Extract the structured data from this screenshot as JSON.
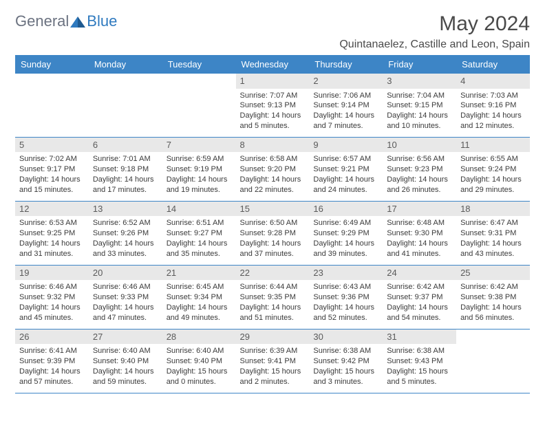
{
  "logo": {
    "general": "General",
    "blue": "Blue"
  },
  "title": "May 2024",
  "location": "Quintanaelez, Castille and Leon, Spain",
  "colors": {
    "header_bg": "#3d85c6",
    "header_text": "#ffffff",
    "border": "#3d85c6",
    "daynum_bg": "#e8e8e8",
    "text": "#3a3a3a",
    "logo_gray": "#6b7280",
    "logo_blue": "#2f7abf"
  },
  "weekdays": [
    "Sunday",
    "Monday",
    "Tuesday",
    "Wednesday",
    "Thursday",
    "Friday",
    "Saturday"
  ],
  "weeks": [
    [
      {
        "n": "",
        "empty": true
      },
      {
        "n": "",
        "empty": true
      },
      {
        "n": "",
        "empty": true
      },
      {
        "n": "1",
        "sr": "7:07 AM",
        "ss": "9:13 PM",
        "d1": "14 hours",
        "d2": "and 5 minutes."
      },
      {
        "n": "2",
        "sr": "7:06 AM",
        "ss": "9:14 PM",
        "d1": "14 hours",
        "d2": "and 7 minutes."
      },
      {
        "n": "3",
        "sr": "7:04 AM",
        "ss": "9:15 PM",
        "d1": "14 hours",
        "d2": "and 10 minutes."
      },
      {
        "n": "4",
        "sr": "7:03 AM",
        "ss": "9:16 PM",
        "d1": "14 hours",
        "d2": "and 12 minutes."
      }
    ],
    [
      {
        "n": "5",
        "sr": "7:02 AM",
        "ss": "9:17 PM",
        "d1": "14 hours",
        "d2": "and 15 minutes."
      },
      {
        "n": "6",
        "sr": "7:01 AM",
        "ss": "9:18 PM",
        "d1": "14 hours",
        "d2": "and 17 minutes."
      },
      {
        "n": "7",
        "sr": "6:59 AM",
        "ss": "9:19 PM",
        "d1": "14 hours",
        "d2": "and 19 minutes."
      },
      {
        "n": "8",
        "sr": "6:58 AM",
        "ss": "9:20 PM",
        "d1": "14 hours",
        "d2": "and 22 minutes."
      },
      {
        "n": "9",
        "sr": "6:57 AM",
        "ss": "9:21 PM",
        "d1": "14 hours",
        "d2": "and 24 minutes."
      },
      {
        "n": "10",
        "sr": "6:56 AM",
        "ss": "9:23 PM",
        "d1": "14 hours",
        "d2": "and 26 minutes."
      },
      {
        "n": "11",
        "sr": "6:55 AM",
        "ss": "9:24 PM",
        "d1": "14 hours",
        "d2": "and 29 minutes."
      }
    ],
    [
      {
        "n": "12",
        "sr": "6:53 AM",
        "ss": "9:25 PM",
        "d1": "14 hours",
        "d2": "and 31 minutes."
      },
      {
        "n": "13",
        "sr": "6:52 AM",
        "ss": "9:26 PM",
        "d1": "14 hours",
        "d2": "and 33 minutes."
      },
      {
        "n": "14",
        "sr": "6:51 AM",
        "ss": "9:27 PM",
        "d1": "14 hours",
        "d2": "and 35 minutes."
      },
      {
        "n": "15",
        "sr": "6:50 AM",
        "ss": "9:28 PM",
        "d1": "14 hours",
        "d2": "and 37 minutes."
      },
      {
        "n": "16",
        "sr": "6:49 AM",
        "ss": "9:29 PM",
        "d1": "14 hours",
        "d2": "and 39 minutes."
      },
      {
        "n": "17",
        "sr": "6:48 AM",
        "ss": "9:30 PM",
        "d1": "14 hours",
        "d2": "and 41 minutes."
      },
      {
        "n": "18",
        "sr": "6:47 AM",
        "ss": "9:31 PM",
        "d1": "14 hours",
        "d2": "and 43 minutes."
      }
    ],
    [
      {
        "n": "19",
        "sr": "6:46 AM",
        "ss": "9:32 PM",
        "d1": "14 hours",
        "d2": "and 45 minutes."
      },
      {
        "n": "20",
        "sr": "6:46 AM",
        "ss": "9:33 PM",
        "d1": "14 hours",
        "d2": "and 47 minutes."
      },
      {
        "n": "21",
        "sr": "6:45 AM",
        "ss": "9:34 PM",
        "d1": "14 hours",
        "d2": "and 49 minutes."
      },
      {
        "n": "22",
        "sr": "6:44 AM",
        "ss": "9:35 PM",
        "d1": "14 hours",
        "d2": "and 51 minutes."
      },
      {
        "n": "23",
        "sr": "6:43 AM",
        "ss": "9:36 PM",
        "d1": "14 hours",
        "d2": "and 52 minutes."
      },
      {
        "n": "24",
        "sr": "6:42 AM",
        "ss": "9:37 PM",
        "d1": "14 hours",
        "d2": "and 54 minutes."
      },
      {
        "n": "25",
        "sr": "6:42 AM",
        "ss": "9:38 PM",
        "d1": "14 hours",
        "d2": "and 56 minutes."
      }
    ],
    [
      {
        "n": "26",
        "sr": "6:41 AM",
        "ss": "9:39 PM",
        "d1": "14 hours",
        "d2": "and 57 minutes."
      },
      {
        "n": "27",
        "sr": "6:40 AM",
        "ss": "9:40 PM",
        "d1": "14 hours",
        "d2": "and 59 minutes."
      },
      {
        "n": "28",
        "sr": "6:40 AM",
        "ss": "9:40 PM",
        "d1": "15 hours",
        "d2": "and 0 minutes."
      },
      {
        "n": "29",
        "sr": "6:39 AM",
        "ss": "9:41 PM",
        "d1": "15 hours",
        "d2": "and 2 minutes."
      },
      {
        "n": "30",
        "sr": "6:38 AM",
        "ss": "9:42 PM",
        "d1": "15 hours",
        "d2": "and 3 minutes."
      },
      {
        "n": "31",
        "sr": "6:38 AM",
        "ss": "9:43 PM",
        "d1": "15 hours",
        "d2": "and 5 minutes."
      },
      {
        "n": "",
        "empty": true
      }
    ]
  ],
  "labels": {
    "sunrise": "Sunrise: ",
    "sunset": "Sunset: ",
    "daylight": "Daylight: "
  }
}
